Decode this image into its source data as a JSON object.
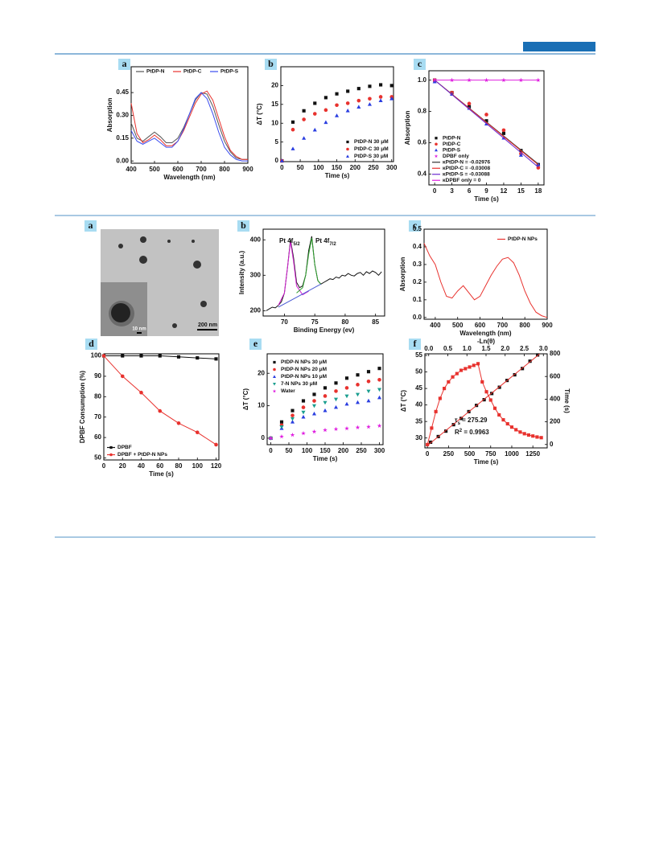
{
  "chart_data": [
    {
      "type": "line",
      "label": "a",
      "xlabel": "Wavelength (nm)",
      "ylabel": "Absorption",
      "x": [
        400,
        425,
        450,
        475,
        500,
        525,
        550,
        575,
        600,
        625,
        650,
        675,
        700,
        725,
        750,
        775,
        800,
        825,
        850,
        875,
        900
      ],
      "xlim": [
        400,
        900
      ],
      "xticks": [
        400,
        500,
        600,
        700,
        800,
        900
      ],
      "ylim": [
        -0.015,
        0.62
      ],
      "yticks": [
        {
          "value": 0,
          "label": "0.00"
        },
        {
          "value": 0.15,
          "label": "0.15"
        },
        {
          "value": 0.3,
          "label": "0.30"
        },
        {
          "value": 0.45,
          "label": "0.45"
        }
      ],
      "legend": "top",
      "series": [
        {
          "name": "PtDP-N",
          "color": "#555555",
          "style": "line",
          "values": [
            0.25,
            0.15,
            0.13,
            0.16,
            0.19,
            0.16,
            0.12,
            0.12,
            0.15,
            0.22,
            0.31,
            0.4,
            0.45,
            0.44,
            0.36,
            0.24,
            0.13,
            0.06,
            0.02,
            0.01,
            0.01
          ]
        },
        {
          "name": "PtDP-C",
          "color": "#e8322e",
          "style": "line",
          "values": [
            0.38,
            0.18,
            0.12,
            0.14,
            0.17,
            0.14,
            0.1,
            0.1,
            0.13,
            0.2,
            0.29,
            0.38,
            0.44,
            0.46,
            0.4,
            0.28,
            0.16,
            0.07,
            0.03,
            0.01,
            0.01
          ]
        },
        {
          "name": "PtDP-S",
          "color": "#3a4cf0",
          "style": "line",
          "values": [
            0.2,
            0.13,
            0.11,
            0.13,
            0.15,
            0.12,
            0.09,
            0.09,
            0.13,
            0.21,
            0.31,
            0.41,
            0.45,
            0.41,
            0.31,
            0.19,
            0.09,
            0.04,
            0.01,
            0.0,
            0.0
          ]
        }
      ]
    },
    {
      "type": "scatter",
      "label": "b",
      "xlabel": "Time (s)",
      "ylabel": "ΔT (°C)",
      "x": [
        0,
        30,
        60,
        90,
        120,
        150,
        180,
        210,
        240,
        270,
        300
      ],
      "xlim": [
        -3,
        305
      ],
      "xticks": [
        0,
        50,
        100,
        150,
        200,
        250,
        300
      ],
      "ylim": [
        -0.2,
        25
      ],
      "yticks": [
        0,
        5,
        10,
        15,
        20
      ],
      "legend": "lower right",
      "series": [
        {
          "name": "PtDP-N 30 μM",
          "color": "#111111",
          "marker": "square",
          "values": [
            0,
            10.3,
            13.3,
            15.3,
            16.8,
            17.8,
            18.5,
            19.2,
            19.8,
            20.2,
            20
          ]
        },
        {
          "name": "PtDP-C 30 μM",
          "color": "#e8322e",
          "marker": "circle",
          "values": [
            0,
            8.3,
            11,
            12.5,
            13.5,
            14.8,
            15.3,
            16,
            16.5,
            17,
            17
          ]
        },
        {
          "name": "PtDP-S 30 μM",
          "color": "#2a3ee0",
          "marker": "triangle",
          "values": [
            0,
            3.2,
            6,
            8.2,
            10.2,
            12,
            13.3,
            14.3,
            15,
            16,
            16.5
          ]
        }
      ]
    },
    {
      "type": "scatter",
      "label": "c",
      "xlabel": "Time (s)",
      "ylabel": "Absorption",
      "x": [
        0,
        3,
        6,
        9,
        12,
        15,
        18
      ],
      "xlim": [
        -1,
        19
      ],
      "xticks": [
        0,
        3,
        6,
        9,
        12,
        15,
        18
      ],
      "ylim": [
        0.33,
        1.06
      ],
      "yticks": [
        0.4,
        0.6,
        0.8,
        {
          "value": 1,
          "label": "1.0"
        }
      ],
      "legend": "lower left",
      "series": [
        {
          "name": "PtDP-N",
          "color": "#111111",
          "marker": "square",
          "values": [
            1.0,
            0.92,
            0.83,
            0.74,
            0.66,
            0.55,
            0.46
          ]
        },
        {
          "name": "PtDP-C",
          "color": "#e8322e",
          "marker": "circle",
          "values": [
            1.0,
            0.92,
            0.85,
            0.78,
            0.68,
            0.53,
            0.44
          ]
        },
        {
          "name": "PtDP-S",
          "color": "#2a3ee0",
          "marker": "triangle",
          "values": [
            0.99,
            0.91,
            0.82,
            0.72,
            0.63,
            0.52,
            0.46
          ]
        },
        {
          "name": "DPBF only",
          "color": "#e020e0",
          "marker": "star",
          "values": [
            1.0,
            1.0,
            1.0,
            1.0,
            1.0,
            1.0,
            1.0
          ]
        },
        {
          "name": "κPtDP-N = -0.02976",
          "color": "#333333",
          "style": "line",
          "x": [
            0,
            18
          ],
          "values": [
            1.0,
            0.464
          ]
        },
        {
          "name": "κPtDP-C = -0.03008",
          "color": "#e8322e",
          "style": "line",
          "x": [
            0,
            18
          ],
          "values": [
            1.0,
            0.459
          ]
        },
        {
          "name": "κPtDP-S = -0.03088",
          "color": "#6a2ad0",
          "style": "line",
          "x": [
            0,
            18
          ],
          "values": [
            1.0,
            0.444
          ]
        },
        {
          "name": "κDPBF only = 0",
          "color": "#e020e0",
          "style": "line",
          "x": [
            0,
            18
          ],
          "values": [
            1.0,
            1.0
          ]
        }
      ]
    },
    {
      "type": "image",
      "label": "a",
      "scale_bars": [
        "200 nm",
        "10 nm"
      ]
    },
    {
      "type": "line",
      "label": "b",
      "xlabel": "Binding Energy (ev)",
      "ylabel": "Intensity (a.u.)",
      "x": [
        67,
        67.5,
        68,
        68.5,
        69,
        69.5,
        70,
        70.5,
        71,
        71.5,
        72,
        72.5,
        73,
        73.5,
        74,
        74.5,
        75,
        75.5,
        76,
        76.5,
        77,
        77.5,
        78,
        78.5,
        79,
        79.5,
        80,
        80.5,
        81,
        81.5,
        82,
        82.5,
        83,
        83.5,
        84,
        84.5,
        85,
        85.5,
        86
      ],
      "xlim": [
        66.5,
        86.5
      ],
      "xticks": [
        70,
        75,
        80,
        85
      ],
      "ylim": [
        185,
        430
      ],
      "yticks": [
        200,
        300,
        400
      ],
      "annotations": [
        [
          {
            "t": "Pt 4f"
          },
          {
            "sub": "5/2"
          }
        ],
        [
          {
            "t": "Pt 4f"
          },
          {
            "sub": "7/2"
          }
        ]
      ],
      "series": [
        {
          "color": "#111111",
          "style": "line",
          "values": [
            200,
            205,
            210,
            208,
            215,
            225,
            250,
            320,
            400,
            350,
            280,
            265,
            270,
            300,
            370,
            410,
            330,
            285,
            275,
            280,
            285,
            290,
            288,
            295,
            292,
            300,
            298,
            305,
            300,
            298,
            305,
            308,
            300,
            310,
            305,
            312,
            308,
            300,
            310
          ]
        },
        {
          "color": "#d21fd2",
          "style": "line",
          "x": [
            69,
            70,
            70.5,
            71,
            71.5,
            72,
            73,
            74
          ],
          "values": [
            215,
            250,
            320,
            395,
            340,
            270,
            245,
            255
          ]
        },
        {
          "color": "#2ca02c",
          "style": "line",
          "x": [
            72,
            73,
            73.5,
            74,
            74.5,
            75,
            75.5,
            76
          ],
          "values": [
            250,
            265,
            300,
            360,
            405,
            330,
            285,
            275
          ]
        },
        {
          "color": "#4a5bd4",
          "style": "line",
          "x": [
            69,
            76
          ],
          "values": [
            210,
            275
          ]
        }
      ]
    },
    {
      "type": "line",
      "label": "c",
      "xlabel": "Wavelength (nm)",
      "ylabel": "Absorption",
      "x": [
        350,
        375,
        400,
        425,
        450,
        475,
        500,
        525,
        550,
        575,
        600,
        625,
        650,
        675,
        700,
        725,
        750,
        775,
        800,
        825,
        850,
        875,
        900
      ],
      "xlim": [
        350,
        900
      ],
      "xticks": [
        400,
        500,
        600,
        700,
        800,
        900
      ],
      "ylim": [
        -0.01,
        0.5
      ],
      "yticks": [
        {
          "value": 0,
          "label": "0.0"
        },
        0.1,
        0.2,
        0.3,
        0.4,
        0.5
      ],
      "legend": "upper right",
      "series": [
        {
          "name": "PtDP-N NPs",
          "color": "#e8322e",
          "style": "line",
          "values": [
            0.42,
            0.35,
            0.3,
            0.2,
            0.12,
            0.11,
            0.15,
            0.18,
            0.14,
            0.1,
            0.12,
            0.18,
            0.24,
            0.29,
            0.33,
            0.34,
            0.31,
            0.24,
            0.15,
            0.08,
            0.03,
            0.01,
            0.0
          ]
        }
      ]
    },
    {
      "type": "line",
      "label": "d",
      "xlabel": "Time (s)",
      "ylabel": "DPBF Consumption (%)",
      "x": [
        0,
        20,
        40,
        60,
        80,
        100,
        120
      ],
      "xlim": [
        0,
        123
      ],
      "xticks": [
        0,
        20,
        40,
        60,
        80,
        100,
        120
      ],
      "ylim": [
        49,
        101
      ],
      "yticks": [
        50,
        60,
        70,
        80,
        90,
        100
      ],
      "legend": "lower left",
      "series": [
        {
          "name": "DPBF",
          "color": "#111111",
          "style": "line+marker",
          "marker": "square",
          "values": [
            100,
            100,
            100,
            100,
            99.5,
            99,
            98.5
          ]
        },
        {
          "name": "DPBF + PtDP-N NPs",
          "color": "#e8322e",
          "style": "line+marker",
          "marker": "circle",
          "values": [
            100,
            90,
            82,
            73,
            67,
            62.5,
            56.5
          ]
        }
      ]
    },
    {
      "type": "scatter",
      "label": "e",
      "xlabel": "Time (s)",
      "ylabel": "ΔT (°C)",
      "x": [
        0,
        30,
        60,
        90,
        120,
        150,
        180,
        210,
        240,
        270,
        300
      ],
      "xlim": [
        -10,
        310
      ],
      "xticks": [
        0,
        50,
        100,
        150,
        200,
        250,
        300
      ],
      "ylim": [
        -2,
        26
      ],
      "yticks": [
        0,
        10,
        20
      ],
      "legend": "upper left",
      "series": [
        {
          "name": "PtDP-N NPs 30 μM",
          "color": "#111111",
          "marker": "square",
          "values": [
            0,
            5,
            8.5,
            11.5,
            13.5,
            15.5,
            17,
            18.5,
            19.5,
            20.5,
            21.5
          ]
        },
        {
          "name": "PtDP-N NPs 20 μM",
          "color": "#e8322e",
          "marker": "circle",
          "values": [
            0,
            4,
            7,
            9.5,
            11.5,
            13,
            14.5,
            15.5,
            16.5,
            17.5,
            18
          ]
        },
        {
          "name": "PtDP-N NPs 10 μM",
          "color": "#2a3ee0",
          "marker": "triangle",
          "values": [
            0,
            3,
            5,
            6.5,
            7.5,
            8.5,
            9.5,
            10.5,
            11,
            11.5,
            12.5
          ]
        },
        {
          "name": "7-N NPs 30 μM",
          "color": "#1a9e8f",
          "marker": "triangle-down",
          "values": [
            0,
            3.5,
            6,
            8,
            10,
            11,
            12,
            13,
            13.5,
            14.5,
            15
          ]
        },
        {
          "name": "Water",
          "color": "#e020e0",
          "marker": "star",
          "values": [
            0,
            0.5,
            1,
            1.5,
            2,
            2.5,
            2.8,
            3,
            3.3,
            3.5,
            3.8
          ]
        }
      ]
    },
    {
      "type": "line",
      "label": "f",
      "xlabel": "Time (s)",
      "ylabel": "ΔT (°C)",
      "x2label": "-Ln(θ)",
      "y2label": "Time (s)",
      "x": [
        0,
        50,
        100,
        150,
        200,
        250,
        300,
        350,
        400,
        450,
        500,
        550,
        600,
        650,
        700,
        750,
        800,
        850,
        900,
        950,
        1000,
        1050,
        1100,
        1150,
        1200,
        1250,
        1300,
        1350
      ],
      "xlim": [
        -30,
        1420
      ],
      "xticks": [
        0,
        250,
        500,
        750,
        1000,
        1250
      ],
      "ylim": [
        27,
        55.5
      ],
      "yticks": [
        30,
        35,
        40,
        45,
        50,
        55
      ],
      "x2lim": [
        -0.1,
        3.1
      ],
      "x2ticks": [
        {
          "value": 0,
          "label": "0.0"
        },
        0.5,
        {
          "value": 1,
          "label": "1.0"
        },
        1.5,
        {
          "value": 2,
          "label": "2.0"
        },
        2.5,
        {
          "value": 3,
          "label": "3.0"
        }
      ],
      "y2lim": [
        -30,
        800
      ],
      "y2ticks": [
        0,
        200,
        400,
        600,
        800
      ],
      "annotations": [
        [
          {
            "t": "τ"
          },
          {
            "sub": "s"
          },
          {
            "t": " = 275.29"
          }
        ],
        [
          {
            "t": "R"
          },
          {
            "sup": "2"
          },
          {
            "t": " = 0.9963"
          }
        ]
      ],
      "series": [
        {
          "color": "#e8322e",
          "style": "line+marker",
          "marker": "square",
          "values": [
            28,
            33,
            38,
            42,
            45,
            47,
            48.5,
            49.5,
            50.5,
            51,
            51.5,
            52,
            52.5,
            47,
            44,
            41.5,
            39,
            37,
            35.5,
            34.3,
            33.3,
            32.5,
            31.8,
            31.3,
            30.9,
            30.6,
            30.3,
            30.1
          ]
        },
        {
          "color": "#111111",
          "style": "marker",
          "marker": "square",
          "axis": "y2",
          "xaxis": "x2",
          "x": [
            0.05,
            0.25,
            0.45,
            0.65,
            0.85,
            1.05,
            1.25,
            1.45,
            1.65,
            1.85,
            2.05,
            2.25,
            2.45,
            2.65,
            2.85
          ],
          "values": [
            20,
            70,
            118,
            175,
            230,
            290,
            345,
            395,
            450,
            505,
            565,
            615,
            670,
            735,
            790
          ]
        },
        {
          "color": "#e8322e",
          "style": "line",
          "axis": "y2",
          "xaxis": "x2",
          "x": [
            0,
            2.9
          ],
          "values": [
            0,
            798
          ]
        }
      ]
    }
  ]
}
